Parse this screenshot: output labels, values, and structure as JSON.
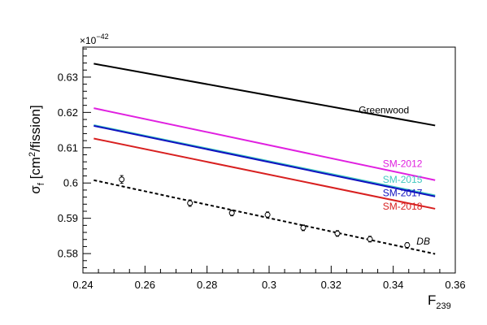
{
  "chart_data": {
    "type": "line",
    "xlabel_main": "F",
    "xlabel_sub": "239",
    "ylabel_sigma": "σ",
    "ylabel_sub": "f",
    "ylabel_units_pre": " [cm",
    "ylabel_units_sup": "2",
    "ylabel_units_post": "/fission]",
    "exponent_base": "×10",
    "exponent_power": "−42",
    "xlim": [
      0.24,
      0.36
    ],
    "ylim": [
      0.5745,
      0.6385
    ],
    "xticks": [
      0.24,
      0.26,
      0.28,
      0.3,
      0.32,
      0.34,
      0.36
    ],
    "xtick_labels": [
      "0.24",
      "0.26",
      "0.28",
      "0.3",
      "0.32",
      "0.34",
      "0.36"
    ],
    "yticks": [
      0.58,
      0.59,
      0.6,
      0.61,
      0.62,
      0.63
    ],
    "ytick_labels": [
      "0.58",
      "0.59",
      "0.6",
      "0.61",
      "0.62",
      "0.63"
    ],
    "series": [
      {
        "name": "Greenwood",
        "color": "#000000",
        "dash": false,
        "x": [
          0.2435,
          0.3535
        ],
        "y": [
          0.6338,
          0.6163
        ],
        "label_pos": [
          0.337,
          0.6197
        ],
        "label_anchor": "middle"
      },
      {
        "name": "SM-2012",
        "color": "#e020e0",
        "dash": false,
        "x": [
          0.2435,
          0.3535
        ],
        "y": [
          0.6212,
          0.6008
        ],
        "label_pos": [
          0.343,
          0.6046
        ],
        "label_anchor": "middle"
      },
      {
        "name": "SM-2015",
        "color": "#40c8c0",
        "dash": false,
        "x": [
          0.2435,
          0.3535
        ],
        "y": [
          0.6164,
          0.5965
        ],
        "label_pos": [
          0.343,
          0.6001
        ],
        "label_anchor": "middle"
      },
      {
        "name": "SM-2017",
        "color": "#1010c0",
        "dash": false,
        "x": [
          0.2435,
          0.3535
        ],
        "y": [
          0.6162,
          0.5962
        ],
        "label_pos": [
          0.343,
          0.5963
        ],
        "label_anchor": "middle"
      },
      {
        "name": "SM-2018",
        "color": "#d82020",
        "dash": false,
        "x": [
          0.2435,
          0.3535
        ],
        "y": [
          0.6126,
          0.5927
        ],
        "label_pos": [
          0.343,
          0.5924
        ],
        "label_anchor": "middle"
      },
      {
        "name": "DB",
        "color": "#000000",
        "dash": true,
        "x": [
          0.2435,
          0.3535
        ],
        "y": [
          0.6008,
          0.5799
        ],
        "label_pos": [
          0.3475,
          0.5826
        ],
        "label_anchor": "start"
      }
    ],
    "points": {
      "x": [
        0.2525,
        0.2745,
        0.288,
        0.2995,
        0.311,
        0.322,
        0.3325,
        0.3445
      ],
      "y": [
        0.601,
        0.5943,
        0.5915,
        0.591,
        0.5873,
        0.5857,
        0.5841,
        0.5824
      ],
      "err": [
        0.0011,
        0.0009,
        0.0008,
        0.0008,
        0.0008,
        0.0008,
        0.0008,
        0.0007
      ]
    },
    "grid": false
  }
}
